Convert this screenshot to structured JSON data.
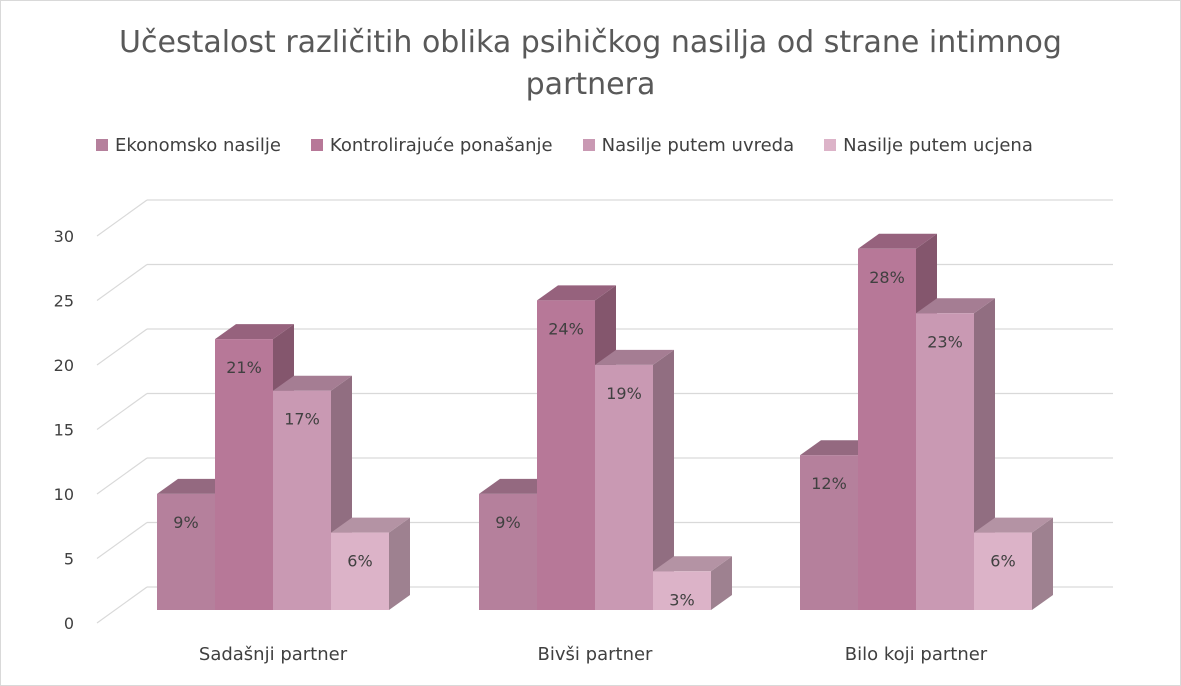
{
  "chart_data": {
    "type": "bar",
    "title_line1": "Učestalost različitih oblika psihičkog nasilja od strane intimnog",
    "title_line2": "partnera",
    "categories": [
      "Sadašnji partner",
      "Bivši partner",
      "Bilo koji partner"
    ],
    "series": [
      {
        "name": "Ekonomsko nasilje",
        "color": "#b5809c",
        "values": [
          9,
          9,
          12
        ],
        "labels": [
          "9%",
          "9%",
          "12%"
        ]
      },
      {
        "name": "Kontrolirajuće ponašanje",
        "color": "#b77898",
        "values": [
          21,
          24,
          28
        ],
        "labels": [
          "21%",
          "24%",
          "28%"
        ]
      },
      {
        "name": "Nasilje putem uvreda",
        "color": "#c999b3",
        "values": [
          17,
          19,
          23
        ],
        "labels": [
          "17%",
          "19%",
          "23%"
        ]
      },
      {
        "name": "Nasilje putem ucjena",
        "color": "#dcb3c8",
        "values": [
          6,
          3,
          6
        ],
        "labels": [
          "6%",
          "3%",
          "6%"
        ]
      }
    ],
    "yticks": [
      "0",
      "5",
      "10",
      "15",
      "20",
      "25",
      "30"
    ],
    "ylim": [
      0,
      30
    ],
    "grid": true,
    "legend_position": "top"
  }
}
